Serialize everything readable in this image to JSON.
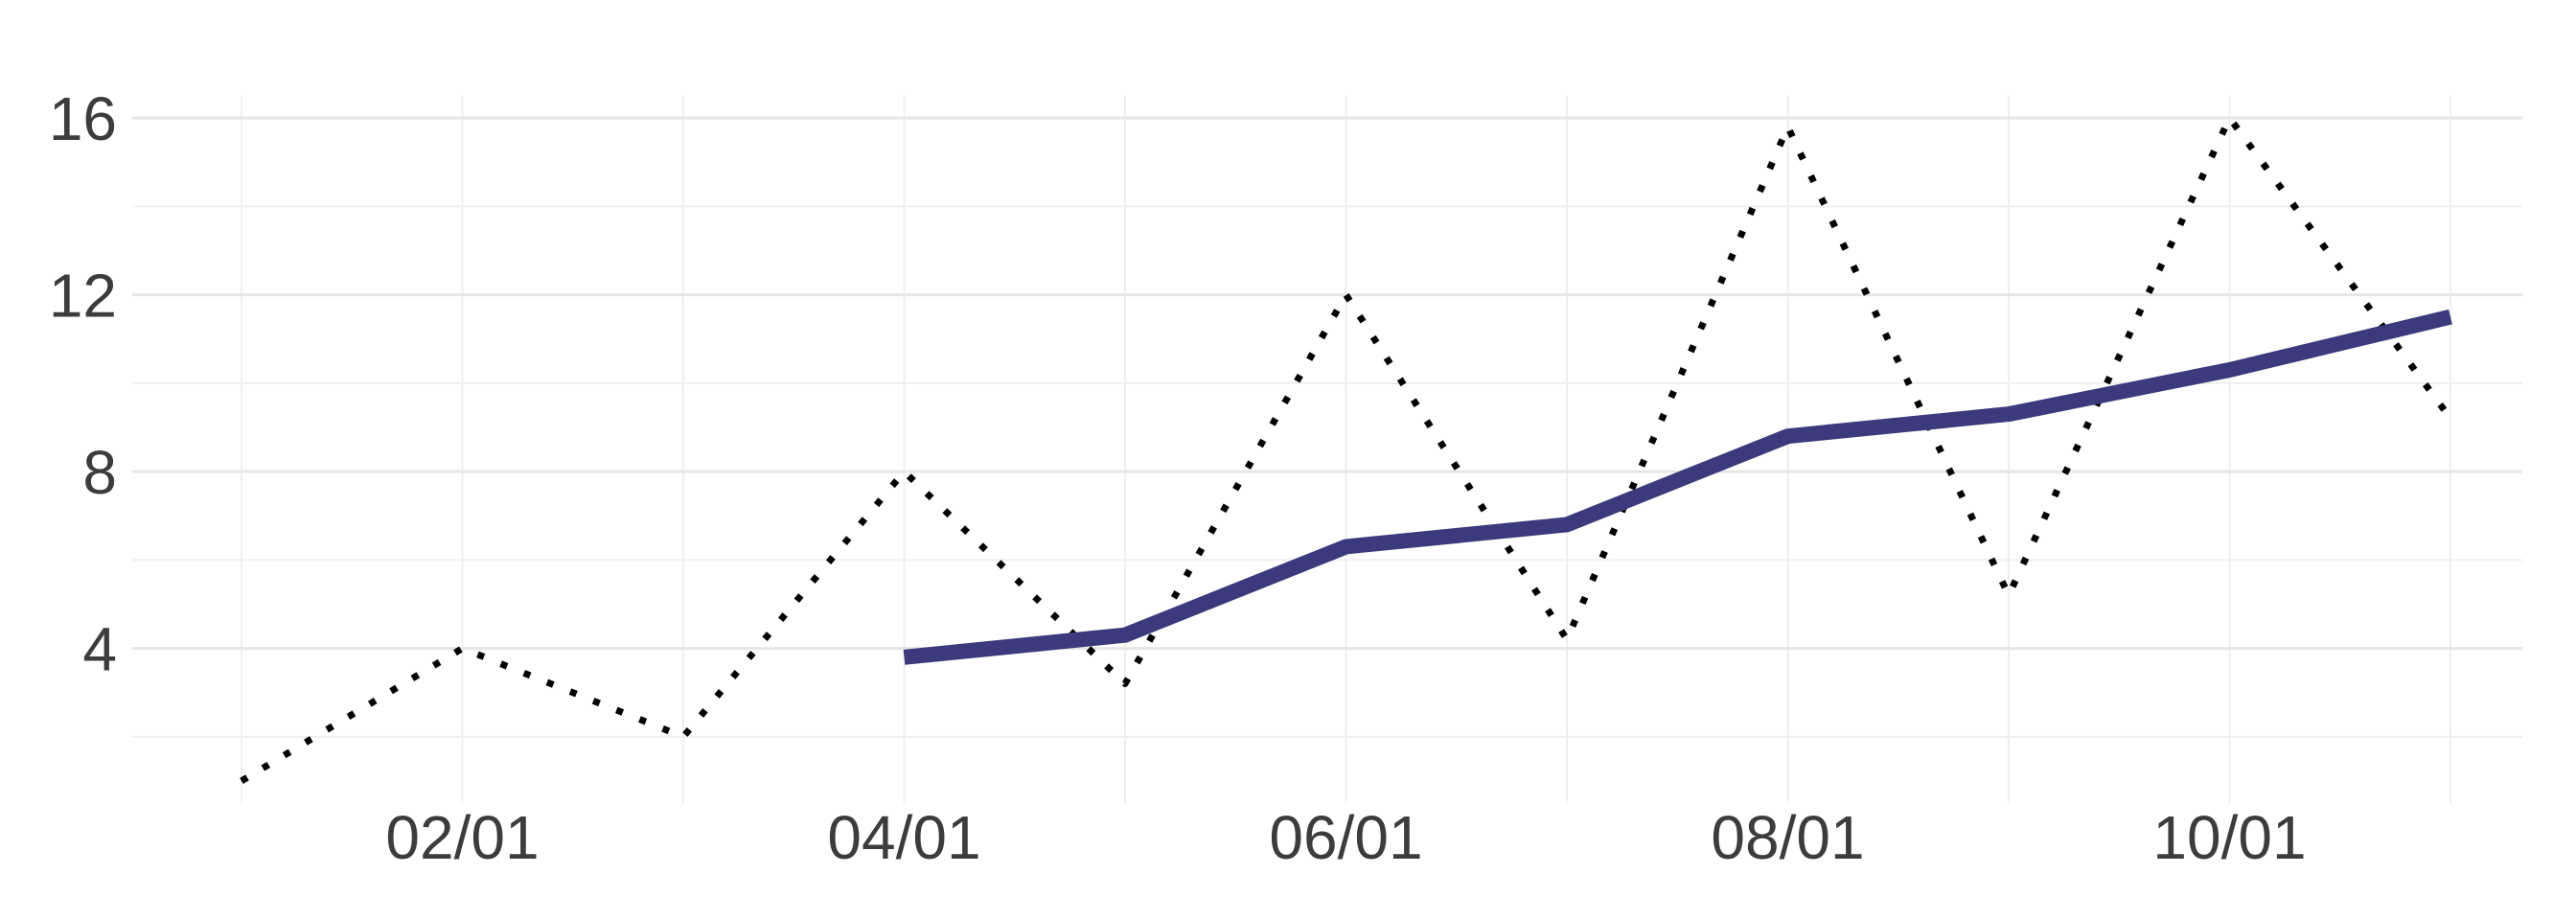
{
  "chart_data": {
    "type": "line",
    "title": "",
    "xlabel": "",
    "ylabel": "",
    "x": [
      "01/01",
      "02/01",
      "03/01",
      "04/01",
      "05/01",
      "06/01",
      "07/01",
      "08/01",
      "09/01",
      "10/01",
      "11/01"
    ],
    "x_tick_labels": [
      "02/01",
      "04/01",
      "06/01",
      "08/01",
      "10/01"
    ],
    "y_tick_labels": [
      "4",
      "8",
      "12",
      "16"
    ],
    "ylim": [
      0.5,
      16.5
    ],
    "grid": true,
    "legend": "none",
    "series": [
      {
        "style": "dotted",
        "color": "#000000",
        "values": [
          1,
          4,
          2,
          8,
          3.2,
          12,
          4.2,
          15.8,
          5.2,
          16,
          9.2
        ]
      },
      {
        "style": "solid",
        "color": "#3a3a7c",
        "values": [
          null,
          null,
          null,
          3.8,
          4.3,
          6.3,
          6.8,
          8.8,
          9.3,
          10.3,
          11.5
        ]
      }
    ]
  }
}
